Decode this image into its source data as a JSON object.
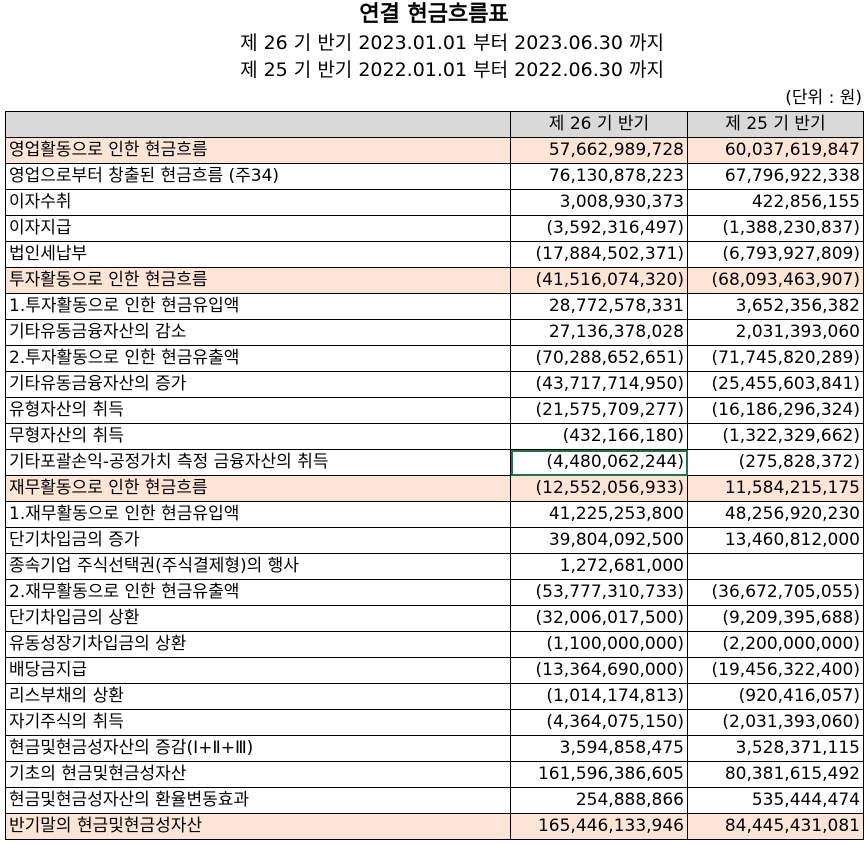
{
  "title": "연결 현금흐름표",
  "period_current": "제 26 기 반기 2023.01.01 부터 2023.06.30 까지",
  "period_prior": "제 25 기 반기 2022.01.01 부터 2022.06.30 까지",
  "unit": "(단위 : 원)",
  "columns": {
    "label": "",
    "current": "제 26 기 반기",
    "prior": "제 25 기 반기"
  },
  "rows": [
    {
      "label": "영업활동으로 인한 현금흐름",
      "current": "57,662,989,728",
      "prior": "60,037,619,847",
      "type": "section"
    },
    {
      "label": "영업으로부터 창출된 현금흐름 (주34)",
      "current": "76,130,878,223",
      "prior": "67,796,922,338",
      "type": "item"
    },
    {
      "label": "이자수취",
      "current": "3,008,930,373",
      "prior": "422,856,155",
      "type": "item"
    },
    {
      "label": "이자지급",
      "current": "(3,592,316,497)",
      "prior": "(1,388,230,837)",
      "type": "item"
    },
    {
      "label": "법인세납부",
      "current": "(17,884,502,371)",
      "prior": "(6,793,927,809)",
      "type": "item"
    },
    {
      "label": "투자활동으로 인한 현금흐름",
      "current": "(41,516,074,320)",
      "prior": "(68,093,463,907)",
      "type": "section"
    },
    {
      "label": "1.투자활동으로 인한 현금유입액",
      "current": "28,772,578,331",
      "prior": "3,652,356,382",
      "type": "item"
    },
    {
      "label": "기타유동금융자산의 감소",
      "current": "27,136,378,028",
      "prior": "2,031,393,060",
      "type": "item"
    },
    {
      "label": "2.투자활동으로 인한 현금유출액",
      "current": "(70,288,652,651)",
      "prior": "(71,745,820,289)",
      "type": "item"
    },
    {
      "label": "기타유동금융자산의 증가",
      "current": "(43,717,714,950)",
      "prior": "(25,455,603,841)",
      "type": "item"
    },
    {
      "label": "유형자산의 취득",
      "current": "(21,575,709,277)",
      "prior": "(16,186,296,324)",
      "type": "item"
    },
    {
      "label": "무형자산의 취득",
      "current": "(432,166,180)",
      "prior": "(1,322,329,662)",
      "type": "item"
    },
    {
      "label": "기타포괄손익-공정가치 측정 금융자산의 취득",
      "current": "(4,480,062,244)",
      "prior": "(275,828,372)",
      "type": "item",
      "selected": "current"
    },
    {
      "label": "재무활동으로 인한 현금흐름",
      "current": "(12,552,056,933)",
      "prior": "11,584,215,175",
      "type": "section"
    },
    {
      "label": "1.재무활동으로 인한 현금유입액",
      "current": "41,225,253,800",
      "prior": "48,256,920,230",
      "type": "item"
    },
    {
      "label": "단기차입금의 증가",
      "current": "39,804,092,500",
      "prior": "13,460,812,000",
      "type": "item"
    },
    {
      "label": "종속기업 주식선택권(주식결제형)의 행사",
      "current": "1,272,681,000",
      "prior": "",
      "type": "item"
    },
    {
      "label": "2.재무활동으로 인한 현금유출액",
      "current": "(53,777,310,733)",
      "prior": "(36,672,705,055)",
      "type": "item"
    },
    {
      "label": "단기차입금의 상환",
      "current": "(32,006,017,500)",
      "prior": "(9,209,395,688)",
      "type": "item"
    },
    {
      "label": "유동성장기차입금의 상환",
      "current": "(1,100,000,000)",
      "prior": "(2,200,000,000)",
      "type": "item"
    },
    {
      "label": "배당금지급",
      "current": "(13,364,690,000)",
      "prior": "(19,456,322,400)",
      "type": "item"
    },
    {
      "label": "리스부채의 상환",
      "current": "(1,014,174,813)",
      "prior": "(920,416,057)",
      "type": "item"
    },
    {
      "label": "자기주식의 취득",
      "current": "(4,364,075,150)",
      "prior": "(2,031,393,060)",
      "type": "item"
    },
    {
      "label": "현금및현금성자산의 증감(Ⅰ+Ⅱ+Ⅲ)",
      "current": "3,594,858,475",
      "prior": "3,528,371,115",
      "type": "total"
    },
    {
      "label": "기초의 현금및현금성자산",
      "current": "161,596,386,605",
      "prior": "80,381,615,492",
      "type": "total"
    },
    {
      "label": "현금및현금성자산의 환율변동효과",
      "current": "254,888,866",
      "prior": "535,444,474",
      "type": "total"
    },
    {
      "label": "반기말의 현금및현금성자산",
      "current": "165,446,133,946",
      "prior": "84,445,431,081",
      "type": "final"
    }
  ],
  "colors": {
    "header_fill": "#d9d9d9",
    "section_fill": "#fce4d6",
    "selection_border": "#217346"
  }
}
